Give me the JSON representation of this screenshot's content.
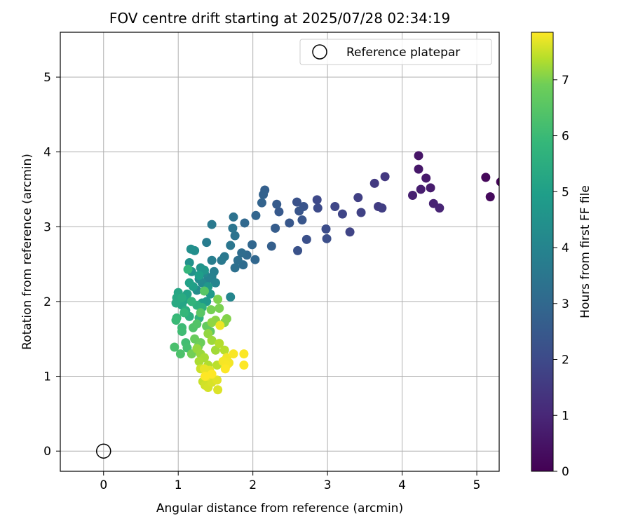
{
  "chart_data": {
    "type": "scatter",
    "title": "FOV centre drift starting at 2025/07/28 02:34:19",
    "xlabel": "Angular distance from reference (arcmin)",
    "ylabel": "Rotation from reference (arcmin)",
    "xlim": [
      -0.58,
      5.3
    ],
    "ylim": [
      -0.27,
      5.6
    ],
    "xticks": [
      0,
      1,
      2,
      3,
      4,
      5
    ],
    "yticks": [
      0,
      1,
      2,
      3,
      4,
      5
    ],
    "xtick_labels": [
      "0",
      "1",
      "2",
      "3",
      "4",
      "5"
    ],
    "ytick_labels": [
      "0",
      "1",
      "2",
      "3",
      "4",
      "5"
    ],
    "grid": true,
    "legend": {
      "position": "top-right",
      "entries": [
        "Reference platepar"
      ]
    },
    "reference_point": {
      "label": "Reference platepar",
      "x": 0,
      "y": 0
    },
    "colorbar": {
      "label": "Hours from first FF file",
      "colormap": "viridis",
      "range": [
        0,
        7.85
      ],
      "ticks": [
        0,
        1,
        2,
        3,
        4,
        5,
        6,
        7
      ],
      "tick_labels": [
        "0",
        "1",
        "2",
        "3",
        "4",
        "5",
        "6",
        "7"
      ]
    },
    "points": [
      [
        5.12,
        3.66,
        0.15
      ],
      [
        5.18,
        3.4,
        0.2
      ],
      [
        5.32,
        3.6,
        0.1
      ],
      [
        4.22,
        3.95,
        0.45
      ],
      [
        4.22,
        3.77,
        0.5
      ],
      [
        4.32,
        3.65,
        0.55
      ],
      [
        4.38,
        3.52,
        0.6
      ],
      [
        4.25,
        3.5,
        0.65
      ],
      [
        4.14,
        3.42,
        0.7
      ],
      [
        4.42,
        3.31,
        0.75
      ],
      [
        4.5,
        3.25,
        0.8
      ],
      [
        3.77,
        3.67,
        1.3
      ],
      [
        3.63,
        3.58,
        1.35
      ],
      [
        3.68,
        3.27,
        1.4
      ],
      [
        3.73,
        3.25,
        1.45
      ],
      [
        3.41,
        3.39,
        1.5
      ],
      [
        3.45,
        3.19,
        1.55
      ],
      [
        3.3,
        2.93,
        1.6
      ],
      [
        3.2,
        3.17,
        1.65
      ],
      [
        3.1,
        3.27,
        1.7
      ],
      [
        2.86,
        3.36,
        1.75
      ],
      [
        2.87,
        3.25,
        1.8
      ],
      [
        2.98,
        2.97,
        1.85
      ],
      [
        2.99,
        2.84,
        1.9
      ],
      [
        2.72,
        2.83,
        1.95
      ],
      [
        2.6,
        2.68,
        2.0
      ],
      [
        2.59,
        3.33,
        2.0
      ],
      [
        2.68,
        3.27,
        2.05
      ],
      [
        2.62,
        3.21,
        2.1
      ],
      [
        2.66,
        3.09,
        2.1
      ],
      [
        2.49,
        3.05,
        2.15
      ],
      [
        2.35,
        3.2,
        2.2
      ],
      [
        2.32,
        3.3,
        2.25
      ],
      [
        2.3,
        2.98,
        2.3
      ],
      [
        2.25,
        2.74,
        2.35
      ],
      [
        2.16,
        3.49,
        2.4
      ],
      [
        2.14,
        3.43,
        2.45
      ],
      [
        2.12,
        3.32,
        2.5
      ],
      [
        2.04,
        3.15,
        2.55
      ],
      [
        2.03,
        2.56,
        2.6
      ],
      [
        1.99,
        2.76,
        2.6
      ],
      [
        1.89,
        3.05,
        2.65
      ],
      [
        1.92,
        2.62,
        2.7
      ],
      [
        1.87,
        2.49,
        2.75
      ],
      [
        1.85,
        2.65,
        2.8
      ],
      [
        1.8,
        2.55,
        2.85
      ],
      [
        1.76,
        2.45,
        2.9
      ],
      [
        1.74,
        3.13,
        2.95
      ],
      [
        1.76,
        2.88,
        3.0
      ],
      [
        1.73,
        2.98,
        3.05
      ],
      [
        1.7,
        2.75,
        3.1
      ],
      [
        1.62,
        2.6,
        3.15
      ],
      [
        1.58,
        2.55,
        3.2
      ],
      [
        1.45,
        3.03,
        3.2
      ],
      [
        1.38,
        2.79,
        3.3
      ],
      [
        1.45,
        2.55,
        3.35
      ],
      [
        1.48,
        2.4,
        3.4
      ],
      [
        1.45,
        2.33,
        3.45
      ],
      [
        1.4,
        2.3,
        3.5
      ],
      [
        1.5,
        2.25,
        3.55
      ],
      [
        1.7,
        2.06,
        3.6
      ],
      [
        1.35,
        2.38,
        3.65
      ],
      [
        1.32,
        2.25,
        3.7
      ],
      [
        1.28,
        2.3,
        3.75
      ],
      [
        1.25,
        2.15,
        3.8
      ],
      [
        1.22,
        2.68,
        3.85
      ],
      [
        1.17,
        2.7,
        3.9
      ],
      [
        1.15,
        2.52,
        3.95
      ],
      [
        1.18,
        2.4,
        4.0
      ],
      [
        1.3,
        2.45,
        4.05
      ],
      [
        1.35,
        2.42,
        4.1
      ],
      [
        1.4,
        2.2,
        4.15
      ],
      [
        1.43,
        2.1,
        4.2
      ],
      [
        1.38,
        2.0,
        4.25
      ],
      [
        1.32,
        1.98,
        4.3
      ],
      [
        1.28,
        2.35,
        4.35
      ],
      [
        1.2,
        2.2,
        4.4
      ],
      [
        1.15,
        2.25,
        4.45
      ],
      [
        1.12,
        2.1,
        4.5
      ],
      [
        1.08,
        2.02,
        4.55
      ],
      [
        1.05,
        1.95,
        4.6
      ],
      [
        1.0,
        2.12,
        4.65
      ],
      [
        0.98,
        2.05,
        4.7
      ],
      [
        0.97,
        1.98,
        4.75
      ],
      [
        1.05,
        2.05,
        4.8
      ],
      [
        1.1,
        1.88,
        4.85
      ],
      [
        1.15,
        1.8,
        4.9
      ],
      [
        1.25,
        1.95,
        4.95
      ],
      [
        1.32,
        1.92,
        5.0
      ],
      [
        1.28,
        1.78,
        5.05
      ],
      [
        1.18,
        2.0,
        5.1
      ],
      [
        1.13,
        2.43,
        5.15
      ],
      [
        1.08,
        1.85,
        5.2
      ],
      [
        0.98,
        1.78,
        5.25
      ],
      [
        0.97,
        1.75,
        5.3
      ],
      [
        1.05,
        1.65,
        5.35
      ],
      [
        1.05,
        1.6,
        5.4
      ],
      [
        1.1,
        1.45,
        5.45
      ],
      [
        1.12,
        1.38,
        5.5
      ],
      [
        0.95,
        1.39,
        5.55
      ],
      [
        1.03,
        1.3,
        5.6
      ],
      [
        1.2,
        1.65,
        5.65
      ],
      [
        1.25,
        1.7,
        5.7
      ],
      [
        1.35,
        2.14,
        5.75
      ],
      [
        1.3,
        1.85,
        5.8
      ],
      [
        1.43,
        1.6,
        5.9
      ],
      [
        1.38,
        1.67,
        5.95
      ],
      [
        1.22,
        1.5,
        6.0
      ],
      [
        1.3,
        1.45,
        6.05
      ],
      [
        1.27,
        1.4,
        6.1
      ],
      [
        1.18,
        1.3,
        6.15
      ],
      [
        1.44,
        1.89,
        6.2
      ],
      [
        1.55,
        1.91,
        6.25
      ],
      [
        1.53,
        2.03,
        6.3
      ],
      [
        1.65,
        1.77,
        6.35
      ],
      [
        1.62,
        1.72,
        6.4
      ],
      [
        1.5,
        1.75,
        6.45
      ],
      [
        1.45,
        1.72,
        6.5
      ],
      [
        1.4,
        1.57,
        6.55
      ],
      [
        1.25,
        1.37,
        6.6
      ],
      [
        1.3,
        1.3,
        6.65
      ],
      [
        1.45,
        1.48,
        6.7
      ],
      [
        1.5,
        1.35,
        6.75
      ],
      [
        1.35,
        1.25,
        6.8
      ],
      [
        1.28,
        1.2,
        6.85
      ],
      [
        1.4,
        1.15,
        6.9
      ],
      [
        1.55,
        1.44,
        6.95
      ],
      [
        1.62,
        1.35,
        7.0
      ],
      [
        1.52,
        1.15,
        7.05
      ],
      [
        1.42,
        1.05,
        7.1
      ],
      [
        1.38,
        0.98,
        7.15
      ],
      [
        1.33,
        0.93,
        7.2
      ],
      [
        1.3,
        1.1,
        7.25
      ],
      [
        1.36,
        0.88,
        7.3
      ],
      [
        1.4,
        0.85,
        7.35
      ],
      [
        1.45,
        0.92,
        7.4
      ],
      [
        1.53,
        0.82,
        7.45
      ],
      [
        1.52,
        0.95,
        7.5
      ],
      [
        1.42,
        1.08,
        7.55
      ],
      [
        1.35,
        1.1,
        7.6
      ],
      [
        1.38,
        1.0,
        7.62
      ],
      [
        1.56,
        1.68,
        7.65
      ],
      [
        1.65,
        1.25,
        7.7
      ],
      [
        1.68,
        1.18,
        7.72
      ],
      [
        1.6,
        1.2,
        7.75
      ],
      [
        1.65,
        1.15,
        7.78
      ],
      [
        1.74,
        1.3,
        7.8
      ],
      [
        1.88,
        1.3,
        7.82
      ],
      [
        1.88,
        1.15,
        7.84
      ],
      [
        1.63,
        1.1,
        7.85
      ],
      [
        1.45,
        1.03,
        7.86
      ],
      [
        1.36,
        1.0,
        7.87
      ]
    ]
  }
}
